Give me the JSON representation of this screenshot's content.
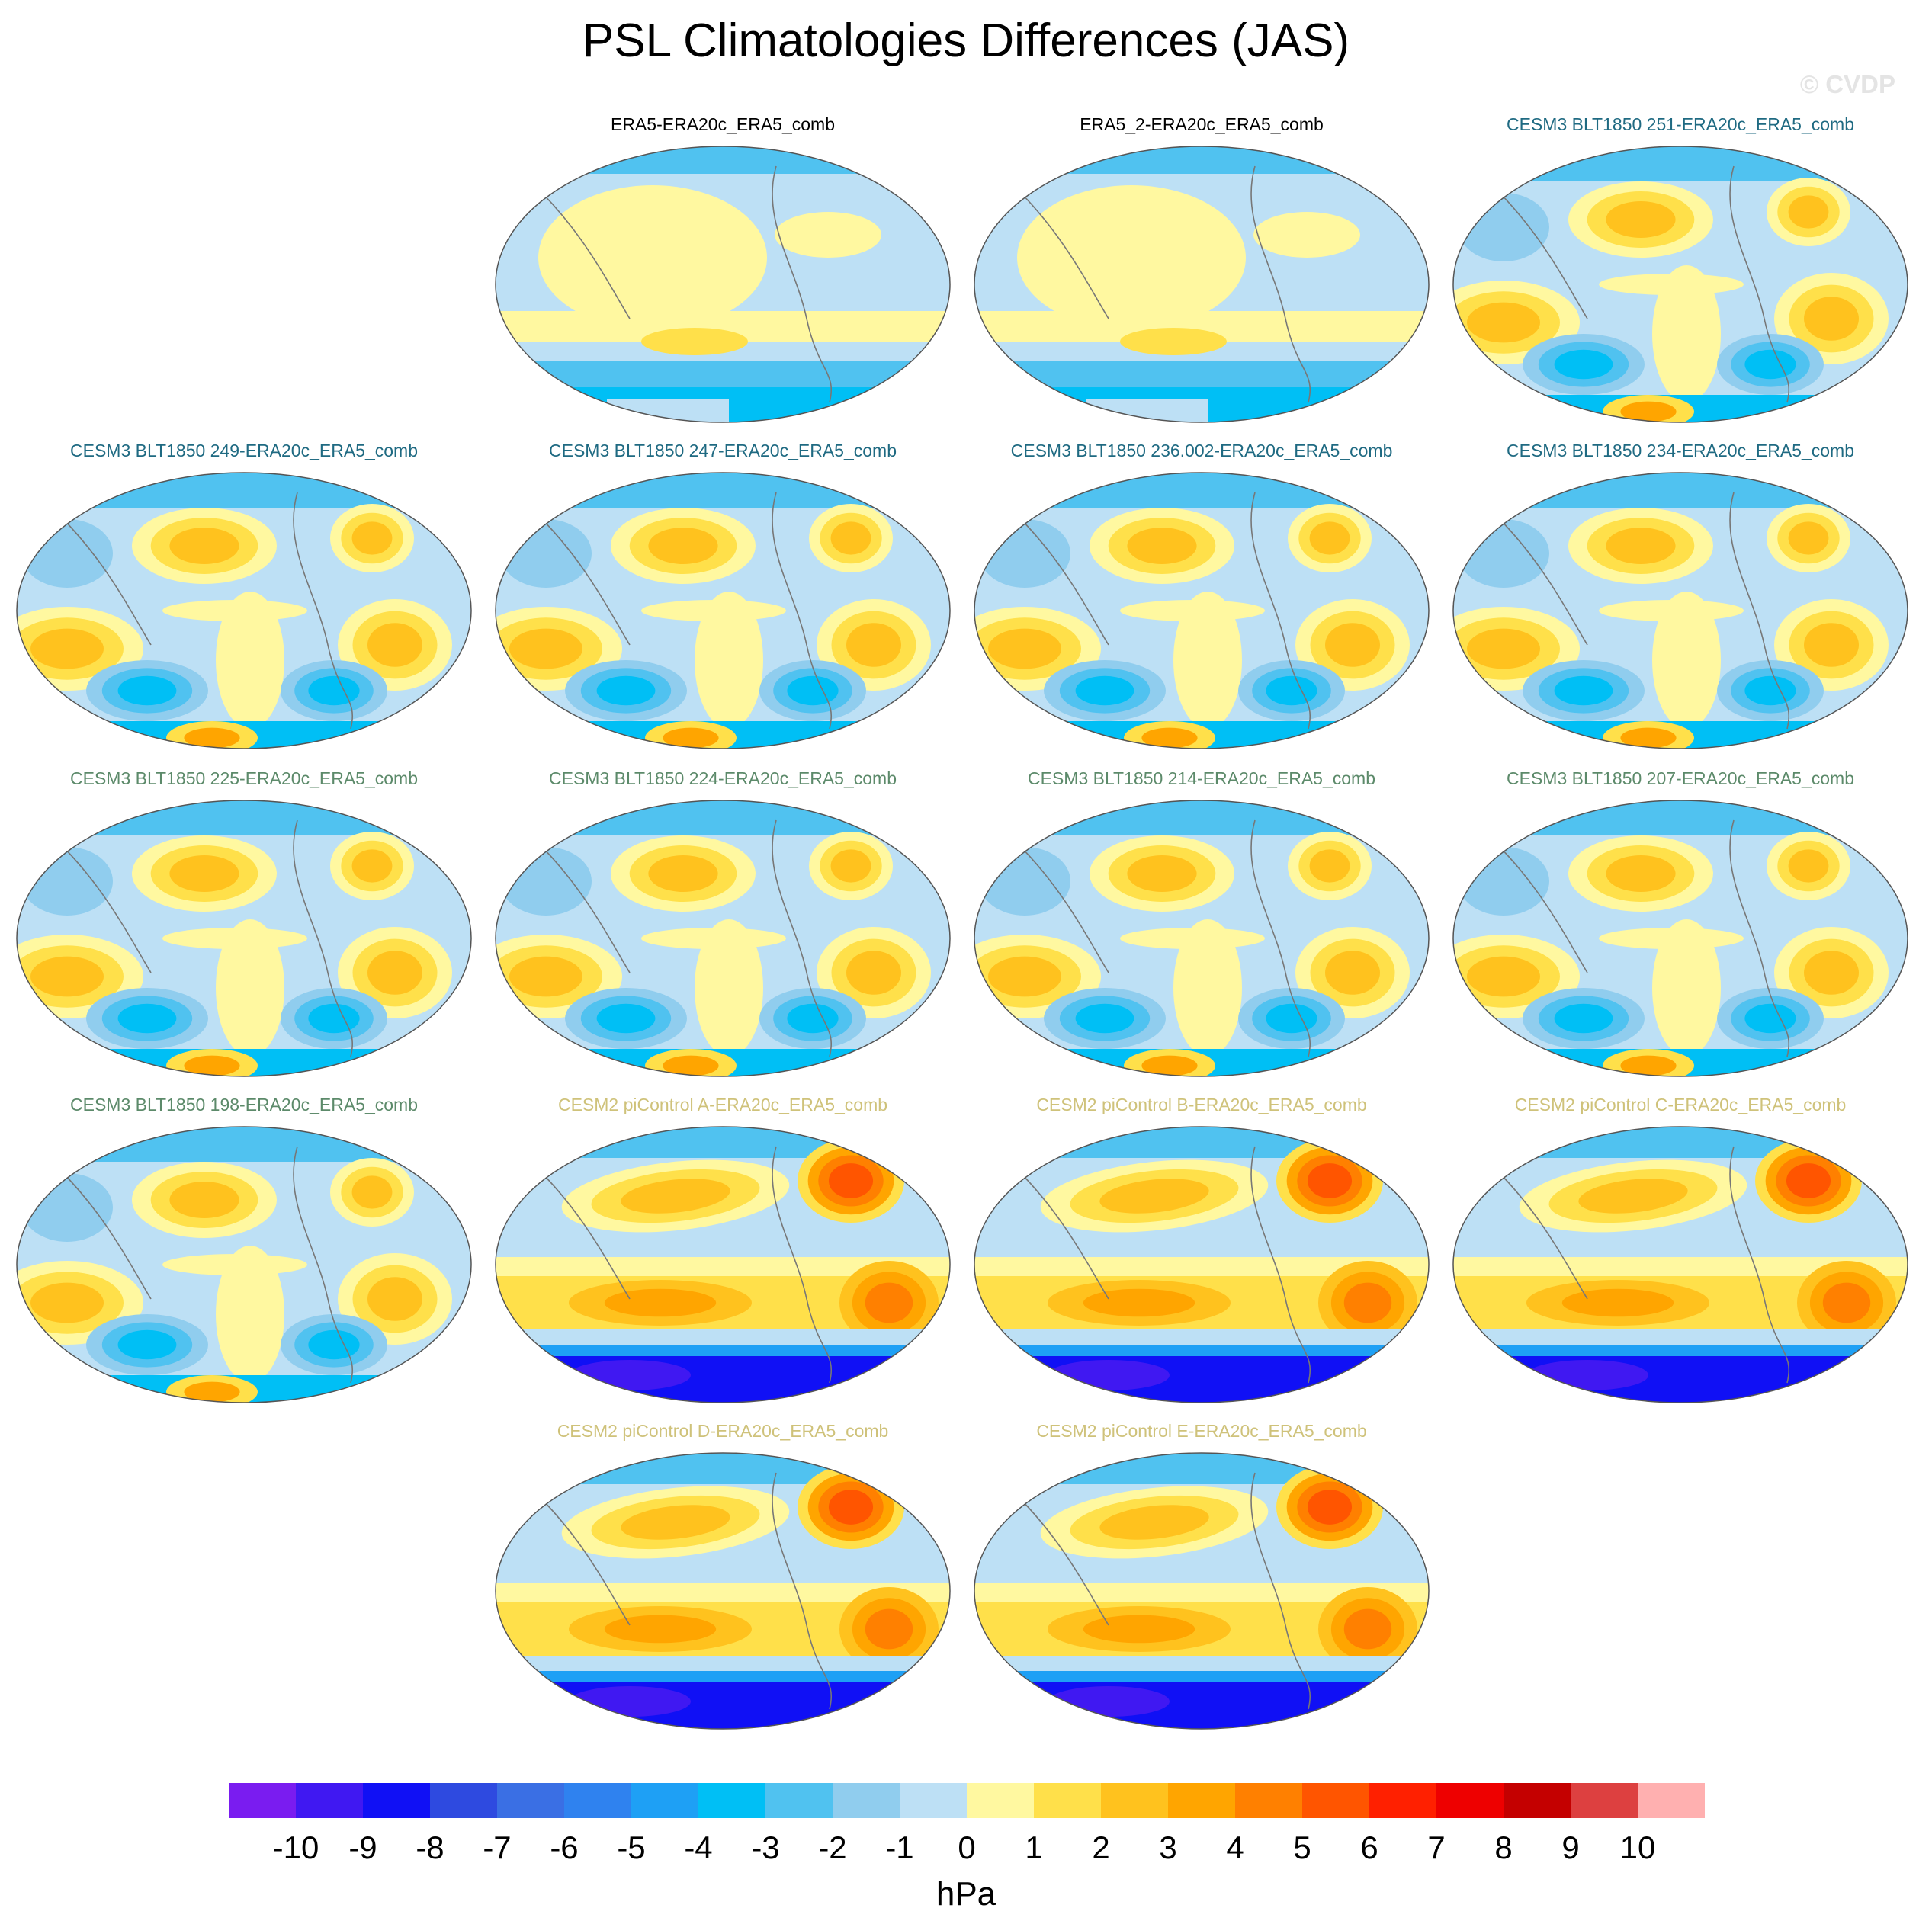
{
  "chart_data": {
    "type": "heatmap",
    "title": "PSL Climatologies Differences (JAS)",
    "watermark": "© CVDP",
    "projection": "Robinson (Pacific-centered global map)",
    "colorbar": {
      "label": "hPa",
      "ticks": [
        "-10",
        "-9",
        "-8",
        "-7",
        "-6",
        "-5",
        "-4",
        "-3",
        "-2",
        "-1",
        "0",
        "1",
        "2",
        "3",
        "4",
        "5",
        "6",
        "7",
        "8",
        "9",
        "10"
      ],
      "colors": [
        "#7a1cf0",
        "#4018f2",
        "#1010f5",
        "#2e4ae0",
        "#3a6fe4",
        "#2f82ef",
        "#1ea0f5",
        "#00bff5",
        "#50c2f0",
        "#90cdee",
        "#bde0f5",
        "#fff8a0",
        "#ffe04a",
        "#ffc21e",
        "#ffa500",
        "#ff8000",
        "#ff5500",
        "#ff2000",
        "#ee0000",
        "#c40000",
        "#dd4040",
        "#ffb0b0"
      ]
    },
    "panels": [
      {
        "title": "ERA5-ERA20c_ERA5_comb",
        "group": "obs",
        "pattern": "obs"
      },
      {
        "title": "ERA5_2-ERA20c_ERA5_comb",
        "group": "obs",
        "pattern": "obs"
      },
      {
        "title": "CESM3 BLT1850 251-ERA20c_ERA5_comb",
        "group": "cesm3a",
        "pattern": "cesm3"
      },
      {
        "title": "CESM3 BLT1850 249-ERA20c_ERA5_comb",
        "group": "cesm3a",
        "pattern": "cesm3"
      },
      {
        "title": "CESM3 BLT1850 247-ERA20c_ERA5_comb",
        "group": "cesm3a",
        "pattern": "cesm3"
      },
      {
        "title": "CESM3 BLT1850 236.002-ERA20c_ERA5_comb",
        "group": "cesm3a",
        "pattern": "cesm3"
      },
      {
        "title": "CESM3 BLT1850 234-ERA20c_ERA5_comb",
        "group": "cesm3a",
        "pattern": "cesm3"
      },
      {
        "title": "CESM3 BLT1850 225-ERA20c_ERA5_comb",
        "group": "cesm3b",
        "pattern": "cesm3"
      },
      {
        "title": "CESM3 BLT1850 224-ERA20c_ERA5_comb",
        "group": "cesm3b",
        "pattern": "cesm3"
      },
      {
        "title": "CESM3 BLT1850 214-ERA20c_ERA5_comb",
        "group": "cesm3b",
        "pattern": "cesm3"
      },
      {
        "title": "CESM3 BLT1850 207-ERA20c_ERA5_comb",
        "group": "cesm3b",
        "pattern": "cesm3"
      },
      {
        "title": "CESM3 BLT1850 198-ERA20c_ERA5_comb",
        "group": "cesm3b",
        "pattern": "cesm3"
      },
      {
        "title": "CESM2 piControl A-ERA20c_ERA5_comb",
        "group": "cesm2",
        "pattern": "cesm2"
      },
      {
        "title": "CESM2 piControl B-ERA20c_ERA5_comb",
        "group": "cesm2",
        "pattern": "cesm2"
      },
      {
        "title": "CESM2 piControl C-ERA20c_ERA5_comb",
        "group": "cesm2",
        "pattern": "cesm2"
      },
      {
        "title": "CESM2 piControl D-ERA20c_ERA5_comb",
        "group": "cesm2",
        "pattern": "cesm2"
      },
      {
        "title": "CESM2 piControl E-ERA20c_ERA5_comb",
        "group": "cesm2",
        "pattern": "cesm2"
      }
    ],
    "title_colors": {
      "obs": "#000000",
      "cesm3a": "#1f6a82",
      "cesm3b": "#5c8a6a",
      "cesm2": "#cfc27a"
    }
  }
}
